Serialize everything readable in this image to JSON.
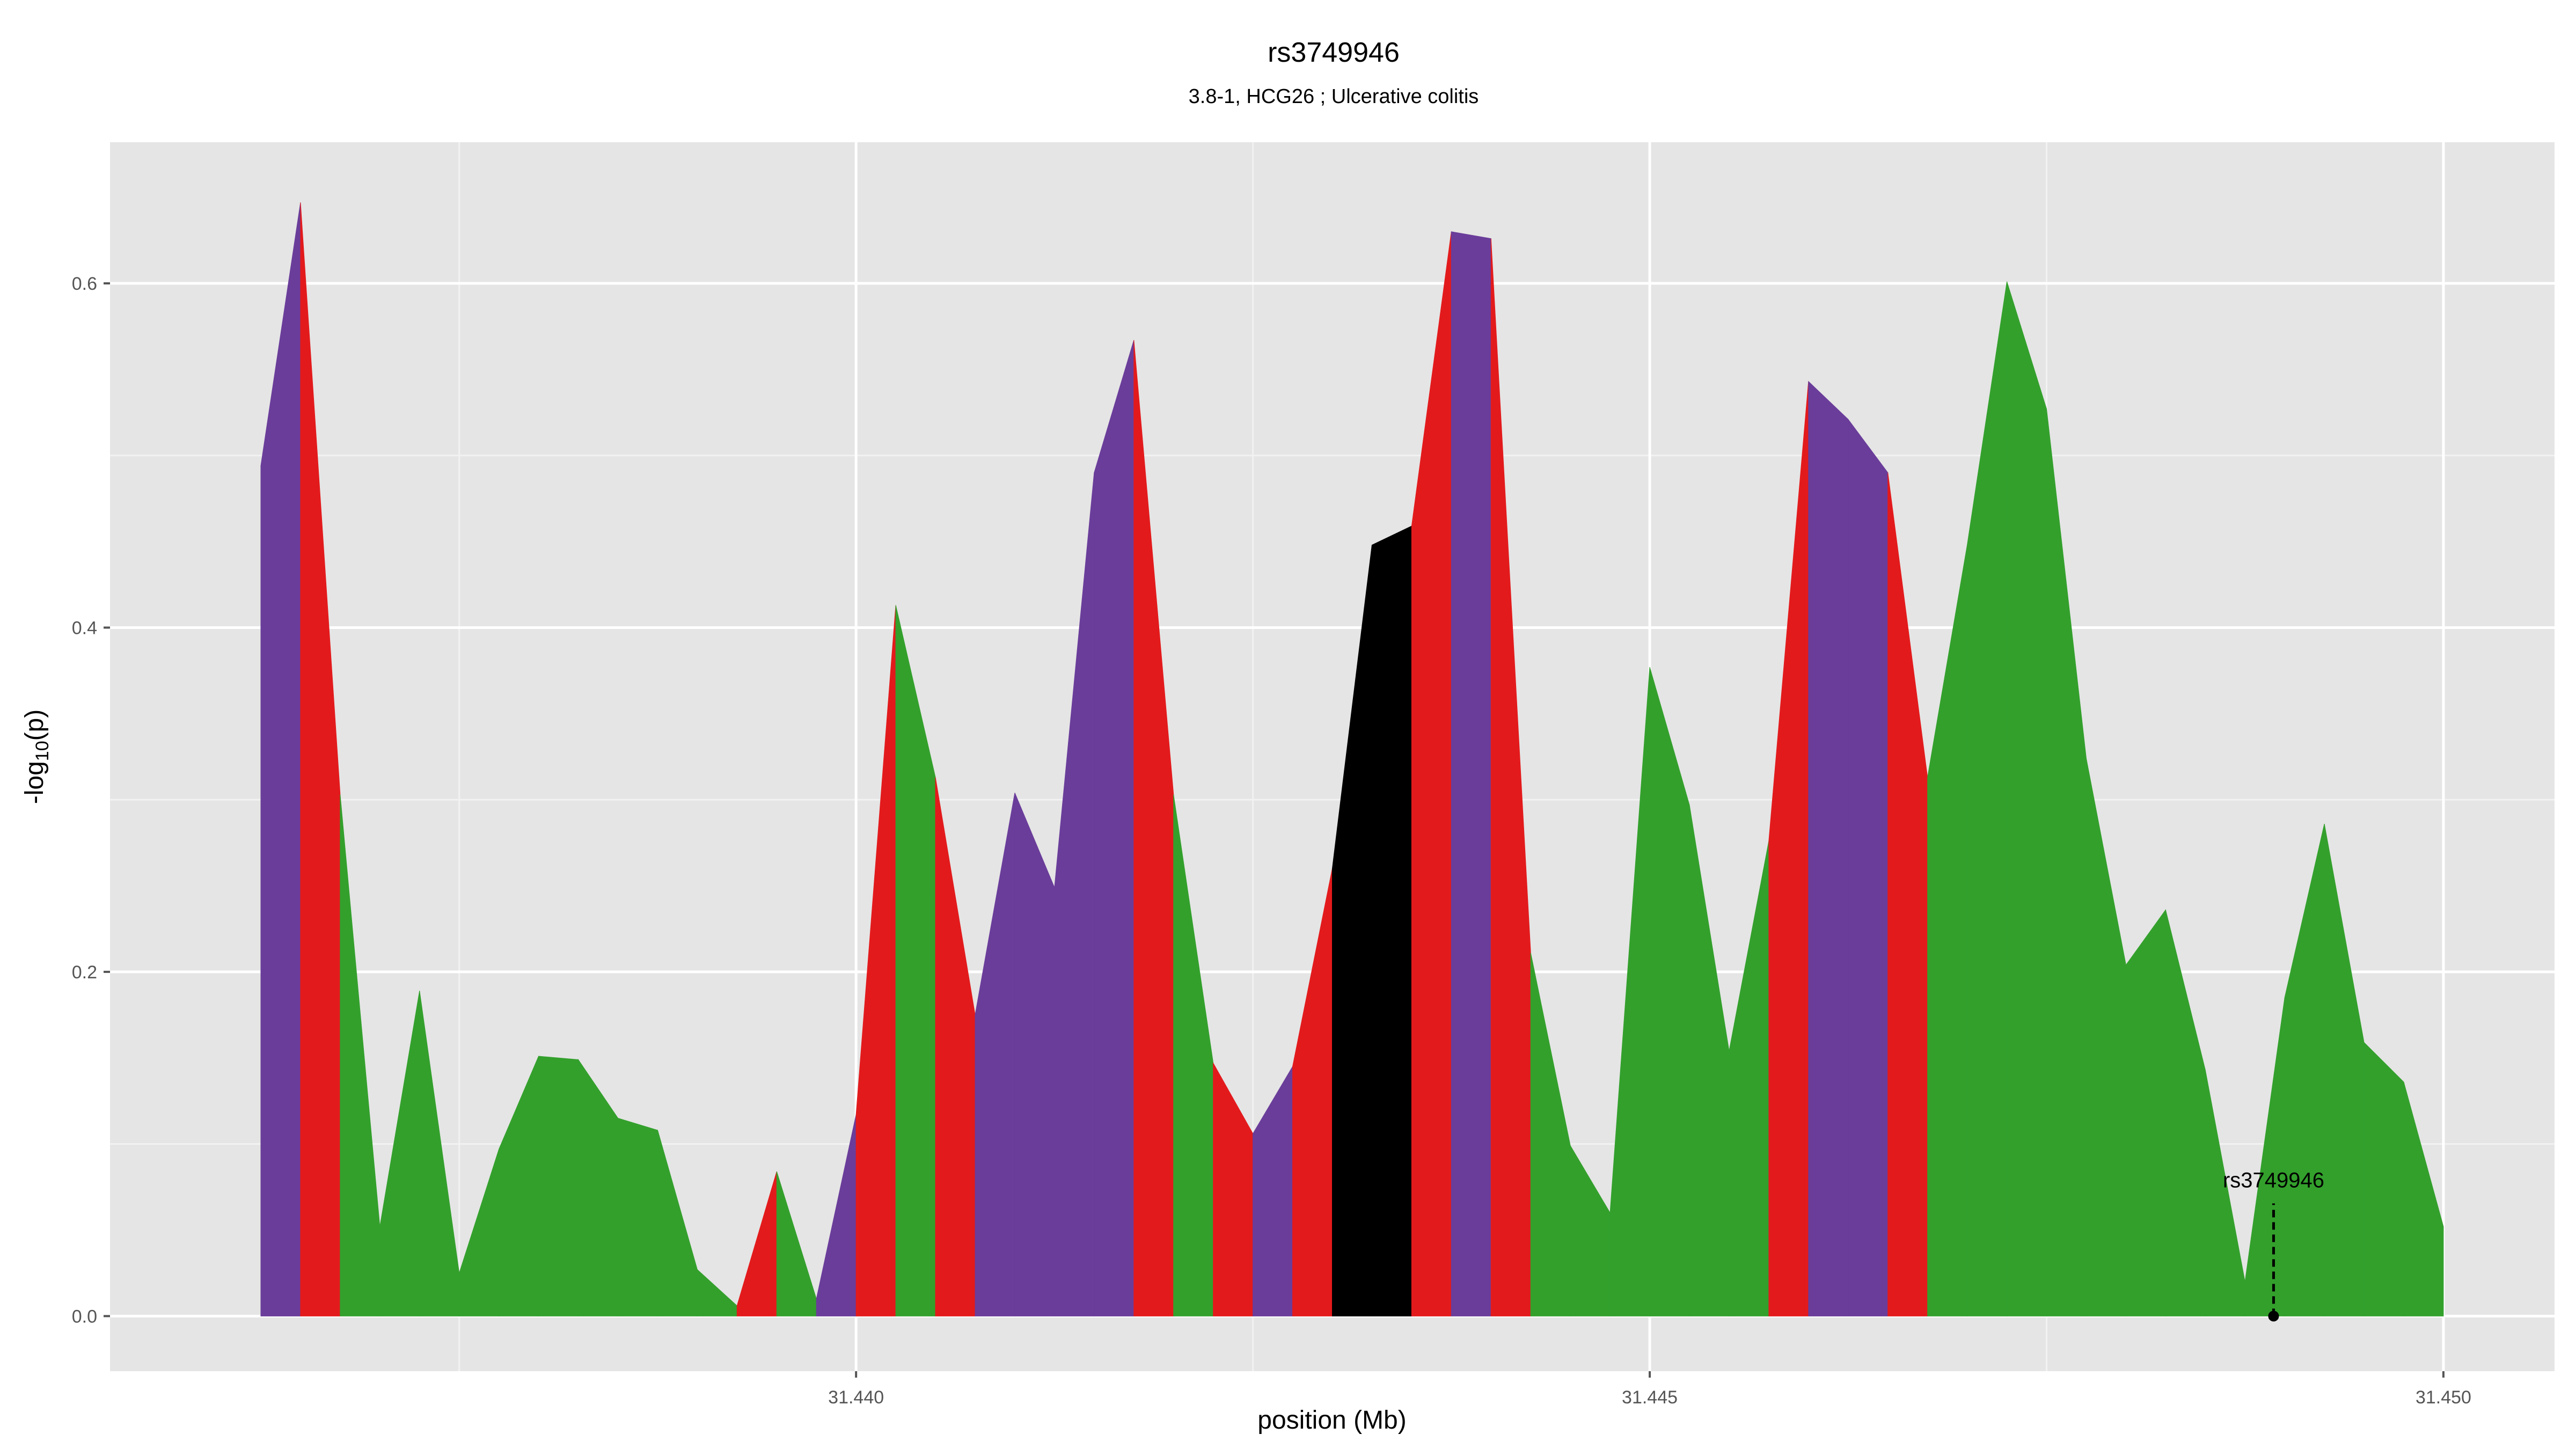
{
  "chart_data": {
    "type": "area",
    "title": "rs3749946",
    "subtitle": "3.8-1, HCG26 ; Ulcerative colitis",
    "xlabel": "position (Mb)",
    "ylabel_main": "-log",
    "ylabel_sub": "10",
    "ylabel_tail": "(p)",
    "xlim": [
      31.4353,
      31.4507
    ],
    "ylim": [
      -0.032,
      0.682
    ],
    "x_ticks": [
      31.44,
      31.445,
      31.45
    ],
    "x_tick_labels": [
      "31.440",
      "31.445",
      "31.450"
    ],
    "x_minor_ticks": [
      31.4375,
      31.4425,
      31.4475
    ],
    "y_ticks": [
      0.0,
      0.2,
      0.4,
      0.6
    ],
    "y_tick_labels": [
      "0.0",
      "0.2",
      "0.4",
      "0.6"
    ],
    "y_minor_ticks": [
      0.1,
      0.3,
      0.5
    ],
    "grid": true,
    "panel_background": "#e5e5e5",
    "colors": {
      "purple": "#6a3d9a",
      "red": "#e31a1c",
      "green": "#33a02c",
      "black": "#000000"
    },
    "x": [
      31.43625,
      31.4365,
      31.43675,
      31.437,
      31.43725,
      31.4375,
      31.43775,
      31.438,
      31.43825,
      31.4385,
      31.43875,
      31.439,
      31.43925,
      31.4395,
      31.43975,
      31.44,
      31.44025,
      31.4405,
      31.44075,
      31.441,
      31.44125,
      31.4415,
      31.44175,
      31.442,
      31.44225,
      31.4425,
      31.44275,
      31.443,
      31.44325,
      31.4435,
      31.44375,
      31.444,
      31.44425,
      31.4445,
      31.44475,
      31.445,
      31.44525,
      31.4455,
      31.44575,
      31.446,
      31.44625,
      31.4465,
      31.44675,
      31.447,
      31.44725,
      31.4475,
      31.44775,
      31.448,
      31.44825,
      31.4485,
      31.44875,
      31.449,
      31.44925,
      31.4495,
      31.44975,
      31.45
    ],
    "y": [
      0.494,
      0.647,
      0.303,
      0.052,
      0.189,
      0.025,
      0.097,
      0.151,
      0.149,
      0.115,
      0.108,
      0.027,
      0.006,
      0.084,
      0.01,
      0.117,
      0.413,
      0.313,
      0.175,
      0.304,
      0.249,
      0.49,
      0.567,
      0.303,
      0.147,
      0.106,
      0.145,
      0.26,
      0.448,
      0.459,
      0.63,
      0.626,
      0.211,
      0.099,
      0.06,
      0.377,
      0.297,
      0.154,
      0.276,
      0.543,
      0.521,
      0.49,
      0.313,
      0.448,
      0.601,
      0.527,
      0.324,
      0.204,
      0.236,
      0.143,
      0.02,
      0.185,
      0.286,
      0.159,
      0.136,
      0.052
    ],
    "band_colors": [
      "purple",
      "red",
      "green",
      "green",
      "green",
      "green",
      "green",
      "green",
      "green",
      "green",
      "green",
      "green",
      "red",
      "green",
      "purple",
      "red",
      "green",
      "red",
      "purple",
      "purple",
      "purple",
      "purple",
      "red",
      "green",
      "red",
      "purple",
      "red",
      "black",
      "black",
      "red",
      "purple",
      "red",
      "green",
      "green",
      "green",
      "green",
      "green",
      "green",
      "red",
      "purple",
      "purple",
      "red",
      "green",
      "green",
      "green",
      "green",
      "green",
      "green",
      "green",
      "green",
      "green",
      "green",
      "green",
      "green",
      "green"
    ],
    "annotation": {
      "label": "rs3749946",
      "x": 31.44893,
      "y": 0.0
    }
  }
}
